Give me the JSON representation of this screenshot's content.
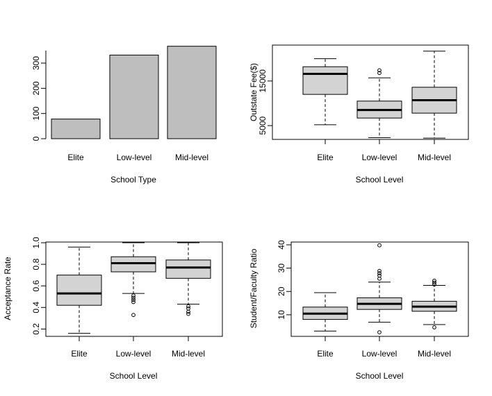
{
  "chart_data": [
    {
      "type": "bar",
      "categories": [
        "Elite",
        "Low-level",
        "Mid-level"
      ],
      "values": [
        78,
        332,
        367
      ],
      "xlabel": "School Type",
      "ylabel": "",
      "ylim": [
        0,
        350
      ],
      "yticks": [
        0,
        100,
        200,
        300
      ],
      "bar_color": "#bebebe"
    },
    {
      "type": "box",
      "categories": [
        "Elite",
        "Low-level",
        "Mid-level"
      ],
      "xlabel": "School Level",
      "ylabel": "Outstate Fee($)",
      "yticks": [
        5000,
        15000
      ],
      "box_color": "#d3d3d3",
      "boxes": [
        {
          "whisker_low": 5200,
          "q1": 12000,
          "median": 16600,
          "q3": 18200,
          "whisker_high": 20000,
          "outliers": []
        },
        {
          "whisker_low": 2300,
          "q1": 6700,
          "median": 8500,
          "q3": 10500,
          "whisker_high": 15700,
          "outliers": [
            16800,
            17400
          ]
        },
        {
          "whisker_low": 2200,
          "q1": 7800,
          "median": 10700,
          "q3": 13600,
          "whisker_high": 21700,
          "outliers": []
        }
      ]
    },
    {
      "type": "box",
      "categories": [
        "Elite",
        "Low-level",
        "Mid-level"
      ],
      "xlabel": "School Level",
      "ylabel": "Acceptance Rate",
      "yticks": [
        "0.2",
        "0.4",
        "0.6",
        "0.8",
        "1.0"
      ],
      "box_color": "#d3d3d3",
      "boxes": [
        {
          "whisker_low": 0.16,
          "q1": 0.42,
          "median": 0.53,
          "q3": 0.7,
          "whisker_high": 0.96,
          "outliers": []
        },
        {
          "whisker_low": 0.53,
          "q1": 0.73,
          "median": 0.81,
          "q3": 0.87,
          "whisker_high": 1.0,
          "outliers": [
            0.51,
            0.49,
            0.47,
            0.45,
            0.33
          ]
        },
        {
          "whisker_low": 0.43,
          "q1": 0.67,
          "median": 0.77,
          "q3": 0.84,
          "whisker_high": 1.0,
          "outliers": [
            0.41,
            0.39,
            0.36,
            0.34
          ]
        }
      ]
    },
    {
      "type": "box",
      "categories": [
        "Elite",
        "Low-level",
        "Mid-level"
      ],
      "xlabel": "School Level",
      "ylabel": "Student/Faculty Ratio",
      "yticks": [
        10,
        20,
        30,
        40
      ],
      "box_color": "#d3d3d3",
      "boxes": [
        {
          "whisker_low": 3.0,
          "q1": 8.0,
          "median": 10.5,
          "q3": 13.3,
          "whisker_high": 19.5,
          "outliers": []
        },
        {
          "whisker_low": 6.8,
          "q1": 12.3,
          "median": 14.7,
          "q3": 17.3,
          "whisker_high": 24.0,
          "outliers": [
            25.5,
            26.8,
            27.8,
            28.8,
            39.8,
            2.5
          ]
        },
        {
          "whisker_low": 5.8,
          "q1": 11.5,
          "median": 13.5,
          "q3": 15.8,
          "whisker_high": 22.6,
          "outliers": [
            23.0,
            23.8,
            24.6,
            4.6
          ]
        }
      ]
    }
  ]
}
